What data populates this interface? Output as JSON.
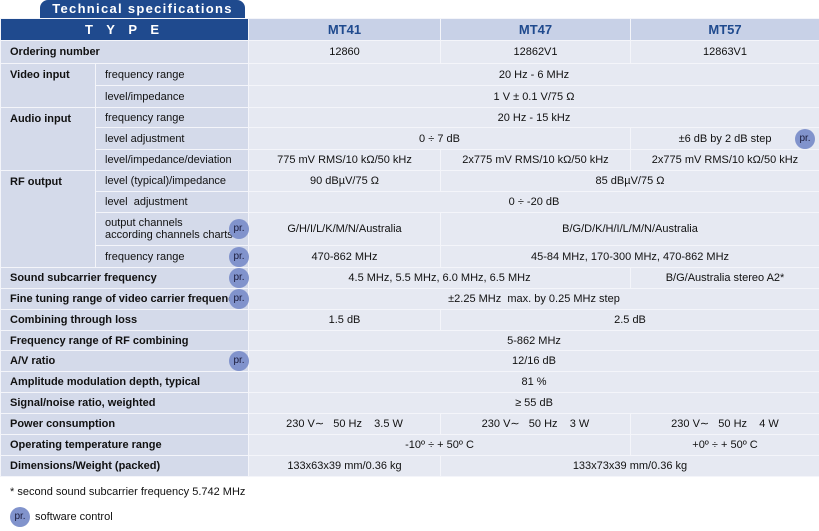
{
  "header": {
    "title": "Technical specifications"
  },
  "table": {
    "type_label": "T Y P E",
    "models": [
      "MT41",
      "MT47",
      "MT57"
    ],
    "rows": [
      {
        "label": "Ordering number",
        "values": [
          "12860",
          "12862V1",
          "12863V1"
        ]
      },
      {
        "group": "Video input",
        "label": "frequency range",
        "values": [
          "20 Hz - 6 MHz"
        ]
      },
      {
        "label": "level/impedance",
        "values": [
          "1 V ± 0.1 V/75 Ω"
        ]
      },
      {
        "group": "Audio input",
        "label": "frequency range",
        "values": [
          "20 Hz - 15 kHz"
        ]
      },
      {
        "label": "level adjustment",
        "values": [
          "0 ÷ 7 dB",
          "±6 dB by 2 dB step"
        ]
      },
      {
        "label": "level/impedance/deviation",
        "values": [
          "775 mV RMS/10 kΩ/50 kHz",
          "2x775 mV RMS/10 kΩ/50 kHz",
          "2x775 mV RMS/10 kΩ/50 kHz"
        ]
      },
      {
        "group": "RF output",
        "label": "level (typical)/impedance",
        "values": [
          "90 dBµV/75 Ω",
          "85 dBµV/75 Ω"
        ]
      },
      {
        "label": "level  adjustment",
        "values": [
          "0 ÷ -20 dB"
        ]
      },
      {
        "label": [
          "output channels",
          "according channels charts"
        ],
        "values": [
          "G/H/I/L/K/M/N/Australia",
          "B/G/D/K/H/I/L/M/N/Australia"
        ]
      },
      {
        "label": "frequency range",
        "values": [
          "470-862 MHz",
          "45-84 MHz, 170-300 MHz, 470-862 MHz"
        ]
      },
      {
        "label": "Sound subcarrier frequency",
        "values": [
          "4.5 MHz, 5.5 MHz, 6.0 MHz, 6.5 MHz",
          "B/G/Australia stereo A2*"
        ]
      },
      {
        "label": "Fine tuning range of video carrier frequency",
        "values": [
          "±2.25 MHz  max. by 0.25 MHz step"
        ]
      },
      {
        "label": "Combining through loss",
        "values": [
          "1.5 dB",
          "2.5 dB"
        ]
      },
      {
        "label": "Frequency range of RF combining",
        "values": [
          "5-862 MHz"
        ]
      },
      {
        "label": "A/V ratio",
        "values": [
          "12/16 dB"
        ]
      },
      {
        "label": "Amplitude modulation depth, typical",
        "values": [
          "81 %"
        ]
      },
      {
        "label": "Signal/noise ratio, weighted",
        "values": [
          "≥ 55 dB"
        ]
      },
      {
        "label": "Power consumption",
        "values": [
          "230 V∼   50 Hz    3.5 W",
          "230 V∼   50 Hz    3 W",
          "230 V∼   50 Hz    4 W"
        ]
      },
      {
        "label": "Operating temperature range",
        "values": [
          "-10º ÷ + 50º C",
          "+0º ÷ + 50º C"
        ]
      },
      {
        "label": "Dimensions/Weight (packed)",
        "values": [
          "133x63x39 mm/0.36 kg",
          "133x73x39 mm/0.36 kg"
        ]
      }
    ]
  },
  "footnotes": {
    "note": "* second sound subcarrier frequency 5.742 MHz",
    "badge": "pr.",
    "badge_meaning": "software control"
  }
}
